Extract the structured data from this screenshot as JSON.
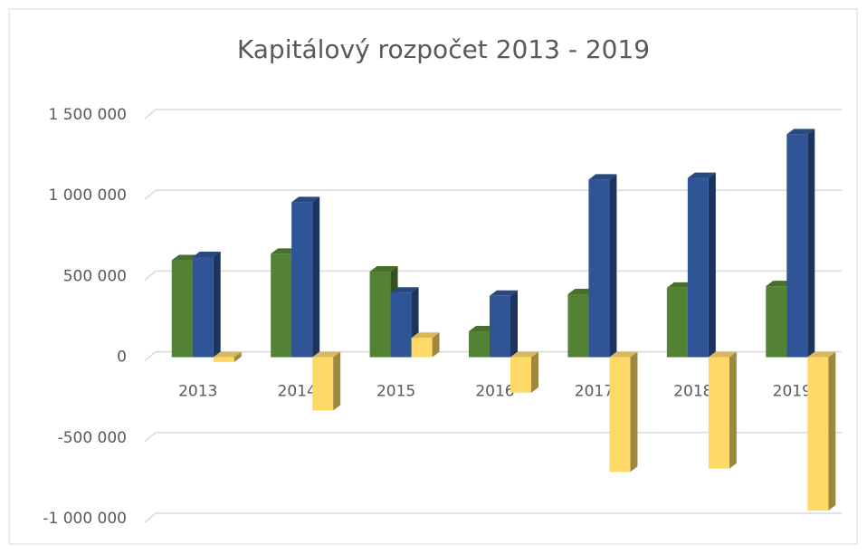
{
  "chart_data": {
    "type": "bar3d",
    "title": "Kapitálový rozpočet 2013 - 2019",
    "categories": [
      "2013",
      "2014",
      "2015",
      "2016",
      "2017",
      "2018",
      "2019"
    ],
    "series": [
      {
        "color": "#548235",
        "values": [
          600000,
          640000,
          530000,
          160000,
          390000,
          430000,
          440000
        ]
      },
      {
        "color": "#2f5597",
        "values": [
          620000,
          960000,
          400000,
          380000,
          1100000,
          1110000,
          1380000
        ]
      },
      {
        "color": "#ffd966",
        "values": [
          -30000,
          -330000,
          120000,
          -220000,
          -710000,
          -690000,
          -950000
        ]
      }
    ],
    "ylim": [
      -1000000,
      1500000
    ],
    "yticks": [
      {
        "value": -1000000,
        "label": "-1 000 000"
      },
      {
        "value": -500000,
        "label": "-500 000"
      },
      0,
      {
        "value": 500000,
        "label": "500 000"
      },
      {
        "value": 1000000,
        "label": "1 000 000"
      },
      {
        "value": 1500000,
        "label": "1 500 000"
      }
    ],
    "grid": true
  }
}
